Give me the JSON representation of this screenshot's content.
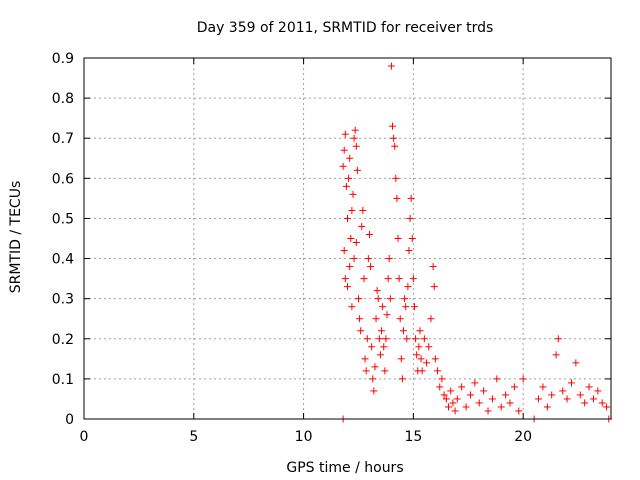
{
  "chart_data": {
    "type": "scatter",
    "title": "Day 359 of 2011, SRMTID for receiver trds",
    "xlabel": "GPS time / hours",
    "ylabel": "SRMTID / TECUs",
    "xlim": [
      0,
      24
    ],
    "ylim": [
      0,
      0.9
    ],
    "x_ticks": [
      0,
      5,
      10,
      15,
      20
    ],
    "x_tick_labels": [
      "0",
      "5",
      "10",
      "15",
      "20"
    ],
    "y_ticks": [
      0,
      0.1,
      0.2,
      0.3,
      0.4,
      0.5,
      0.6,
      0.7,
      0.8,
      0.9
    ],
    "y_tick_labels": [
      "0",
      "0.1",
      "0.2",
      "0.3",
      "0.4",
      "0.5",
      "0.6",
      "0.7",
      "0.8",
      "0.9"
    ],
    "grid": true,
    "marker": "plus",
    "colors": {
      "series": "#ff0000",
      "grid": "#a0a0a0",
      "frame": "#000000"
    },
    "series": [
      {
        "points": [
          [
            11.8,
            0.63
          ],
          [
            11.85,
            0.67
          ],
          [
            11.9,
            0.71
          ],
          [
            11.95,
            0.58
          ],
          [
            12.0,
            0.5
          ],
          [
            12.05,
            0.6
          ],
          [
            12.1,
            0.65
          ],
          [
            12.15,
            0.45
          ],
          [
            12.2,
            0.52
          ],
          [
            12.25,
            0.56
          ],
          [
            12.3,
            0.7
          ],
          [
            12.35,
            0.72
          ],
          [
            12.4,
            0.68
          ],
          [
            12.45,
            0.62
          ],
          [
            11.85,
            0.42
          ],
          [
            11.9,
            0.35
          ],
          [
            12.0,
            0.33
          ],
          [
            12.1,
            0.38
          ],
          [
            12.2,
            0.28
          ],
          [
            12.3,
            0.4
          ],
          [
            12.4,
            0.44
          ],
          [
            12.5,
            0.3
          ],
          [
            12.55,
            0.25
          ],
          [
            12.6,
            0.22
          ],
          [
            12.65,
            0.48
          ],
          [
            12.7,
            0.52
          ],
          [
            12.75,
            0.35
          ],
          [
            12.8,
            0.15
          ],
          [
            12.85,
            0.12
          ],
          [
            12.9,
            0.2
          ],
          [
            12.95,
            0.4
          ],
          [
            13.0,
            0.46
          ],
          [
            13.05,
            0.38
          ],
          [
            13.1,
            0.18
          ],
          [
            13.15,
            0.1
          ],
          [
            13.2,
            0.07
          ],
          [
            13.25,
            0.13
          ],
          [
            13.3,
            0.25
          ],
          [
            13.35,
            0.32
          ],
          [
            13.4,
            0.3
          ],
          [
            13.45,
            0.2
          ],
          [
            13.5,
            0.16
          ],
          [
            13.55,
            0.22
          ],
          [
            13.6,
            0.28
          ],
          [
            13.65,
            0.18
          ],
          [
            13.7,
            0.12
          ],
          [
            13.75,
            0.2
          ],
          [
            13.8,
            0.26
          ],
          [
            13.85,
            0.35
          ],
          [
            13.9,
            0.4
          ],
          [
            13.95,
            0.3
          ],
          [
            14.0,
            0.88
          ],
          [
            14.05,
            0.73
          ],
          [
            14.1,
            0.7
          ],
          [
            14.15,
            0.68
          ],
          [
            14.2,
            0.6
          ],
          [
            14.25,
            0.55
          ],
          [
            14.3,
            0.45
          ],
          [
            14.35,
            0.35
          ],
          [
            14.4,
            0.25
          ],
          [
            14.45,
            0.15
          ],
          [
            14.5,
            0.1
          ],
          [
            14.55,
            0.22
          ],
          [
            14.6,
            0.3
          ],
          [
            14.65,
            0.28
          ],
          [
            14.7,
            0.2
          ],
          [
            14.75,
            0.33
          ],
          [
            14.8,
            0.42
          ],
          [
            14.85,
            0.5
          ],
          [
            14.9,
            0.55
          ],
          [
            14.95,
            0.45
          ],
          [
            15.0,
            0.35
          ],
          [
            15.05,
            0.28
          ],
          [
            15.1,
            0.2
          ],
          [
            15.15,
            0.16
          ],
          [
            15.2,
            0.12
          ],
          [
            15.25,
            0.18
          ],
          [
            15.3,
            0.22
          ],
          [
            15.35,
            0.15
          ],
          [
            15.4,
            0.12
          ],
          [
            15.5,
            0.2
          ],
          [
            15.6,
            0.14
          ],
          [
            15.7,
            0.18
          ],
          [
            15.8,
            0.25
          ],
          [
            15.9,
            0.38
          ],
          [
            15.95,
            0.33
          ],
          [
            16.0,
            0.15
          ],
          [
            16.1,
            0.12
          ],
          [
            16.2,
            0.08
          ],
          [
            16.3,
            0.1
          ],
          [
            16.4,
            0.06
          ],
          [
            16.5,
            0.05
          ],
          [
            16.6,
            0.03
          ],
          [
            16.7,
            0.07
          ],
          [
            16.8,
            0.04
          ],
          [
            16.9,
            0.02
          ],
          [
            17.0,
            0.05
          ],
          [
            17.2,
            0.08
          ],
          [
            17.4,
            0.03
          ],
          [
            17.6,
            0.06
          ],
          [
            17.8,
            0.09
          ],
          [
            18.0,
            0.04
          ],
          [
            18.2,
            0.07
          ],
          [
            18.4,
            0.02
          ],
          [
            18.6,
            0.05
          ],
          [
            18.8,
            0.1
          ],
          [
            19.0,
            0.03
          ],
          [
            19.2,
            0.06
          ],
          [
            19.4,
            0.04
          ],
          [
            19.6,
            0.08
          ],
          [
            19.8,
            0.02
          ],
          [
            20.0,
            0.1
          ],
          [
            20.7,
            0.05
          ],
          [
            20.9,
            0.08
          ],
          [
            21.1,
            0.03
          ],
          [
            21.3,
            0.06
          ],
          [
            21.5,
            0.16
          ],
          [
            21.6,
            0.2
          ],
          [
            21.8,
            0.07
          ],
          [
            22.0,
            0.05
          ],
          [
            22.2,
            0.09
          ],
          [
            22.4,
            0.14
          ],
          [
            22.6,
            0.06
          ],
          [
            22.8,
            0.04
          ],
          [
            23.0,
            0.08
          ],
          [
            23.2,
            0.05
          ],
          [
            23.4,
            0.07
          ],
          [
            23.6,
            0.04
          ],
          [
            23.8,
            0.03
          ],
          [
            11.8,
            0.0
          ],
          [
            20.5,
            0.0
          ],
          [
            23.9,
            0.0
          ]
        ]
      }
    ]
  }
}
